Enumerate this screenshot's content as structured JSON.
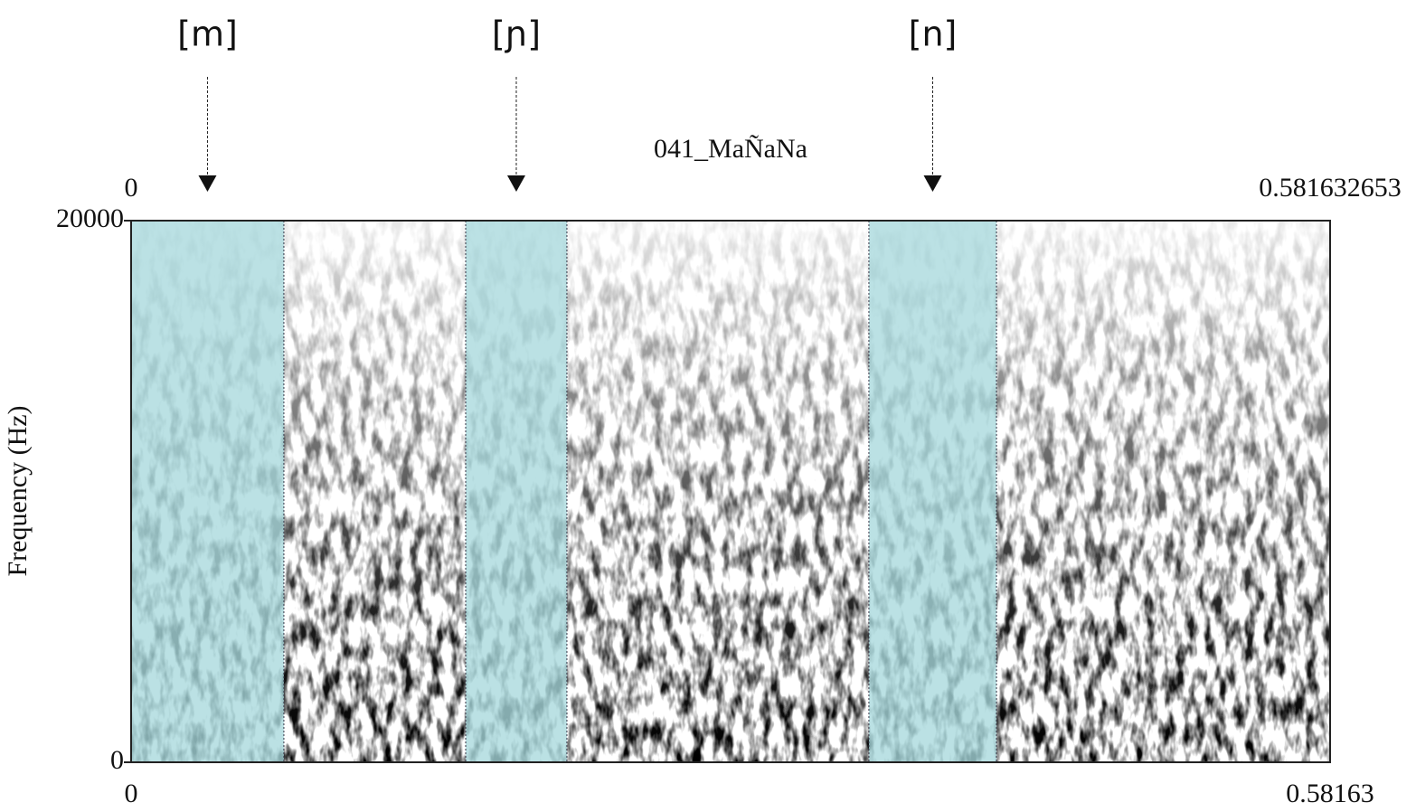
{
  "chart_data": {
    "type": "spectrogram",
    "title": "041_MaÑaNa",
    "y_label": "Frequency (Hz)",
    "xlim": [
      0,
      0.581632653
    ],
    "ylim": [
      0,
      20000
    ],
    "yticks": [
      0,
      20000
    ],
    "xticks_top": [
      0,
      0.581632653
    ],
    "xticks": [
      0,
      {
        "value": 0.581632653,
        "label": "0.58163"
      }
    ],
    "segment_color": "#a8d8dc",
    "segments": [
      {
        "label": "[m]",
        "start": 0,
        "end": 0.0741
      },
      {
        "label": "[ɲ]",
        "start": 0.1623,
        "end": 0.2114
      },
      {
        "label": "[n]",
        "start": 0.3579,
        "end": 0.4198
      }
    ]
  }
}
